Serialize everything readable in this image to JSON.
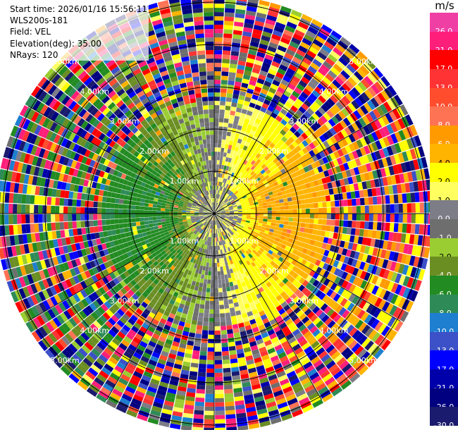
{
  "meta": {
    "start_time": "Start time: 2026/01/16 15:56:11",
    "instrument": "WLS200s-181",
    "field": "Field: VEL",
    "elevation": "Elevation(deg): 35.00",
    "nrays": "NRays: 120"
  },
  "colorbar": {
    "unit": "m/s",
    "bins": [
      {
        "label": "26.0",
        "color": "#f03fa4"
      },
      {
        "label": "21.0",
        "color": "#ff1f7a"
      },
      {
        "label": "17.0",
        "color": "#ff0000"
      },
      {
        "label": "13.0",
        "color": "#ff3333"
      },
      {
        "label": "10.0",
        "color": "#ff4d2e"
      },
      {
        "label": "8.0",
        "color": "#ff7355"
      },
      {
        "label": "6.0",
        "color": "#ff9a00"
      },
      {
        "label": "4.0",
        "color": "#ffb400"
      },
      {
        "label": "2.0",
        "color": "#ffff00"
      },
      {
        "label": "1.0",
        "color": "#ffff60"
      },
      {
        "label": "0.0",
        "color": "#7d7d88"
      },
      {
        "label": "-1.0",
        "color": "#6e6e6e"
      },
      {
        "label": "-2.0",
        "color": "#9acd32"
      },
      {
        "label": "-4.0",
        "color": "#6b8e23"
      },
      {
        "label": "-6.0",
        "color": "#228b22"
      },
      {
        "label": "-8.0",
        "color": "#2e8b57"
      },
      {
        "label": "-10.0",
        "color": "#1e7fd0"
      },
      {
        "label": "-13.0",
        "color": "#3c50c8"
      },
      {
        "label": "-17.0",
        "color": "#0000ff"
      },
      {
        "label": "-21.0",
        "color": "#0000aa"
      },
      {
        "label": "-26.0",
        "color": "#000080"
      },
      {
        "label": "-30.0",
        "color": "#1a1a6e"
      }
    ]
  },
  "chart_data": {
    "type": "heatmap",
    "projection": "polar-ppi",
    "field": "VEL",
    "units": "m/s",
    "rays": 120,
    "range_rings_km": [
      1,
      2,
      3,
      4,
      5
    ],
    "ring_labels": [
      "1.00km",
      "2.00km",
      "3.00km",
      "4.00km",
      "5.00km"
    ],
    "value_range": [
      -30.0,
      26.0
    ],
    "near_range_pattern": {
      "azimuth_deg_negative_max": 300,
      "azimuth_deg_positive_max": 100,
      "near_range_km": 0.4,
      "clean_data_limit_km": 2.6
    }
  }
}
